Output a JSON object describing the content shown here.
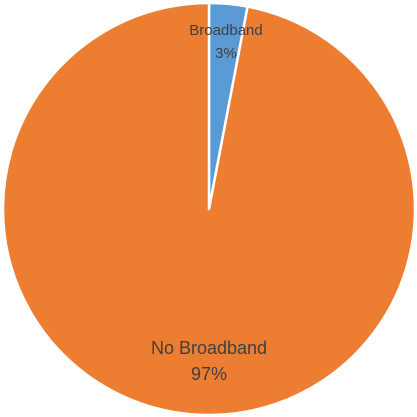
{
  "chart_data": {
    "type": "pie",
    "categories": [
      "Broadband",
      "No Broadband"
    ],
    "values": [
      3,
      97
    ],
    "value_labels": [
      "3%",
      "97%"
    ],
    "colors": [
      "#5b9bd5",
      "#ed7d31"
    ]
  }
}
